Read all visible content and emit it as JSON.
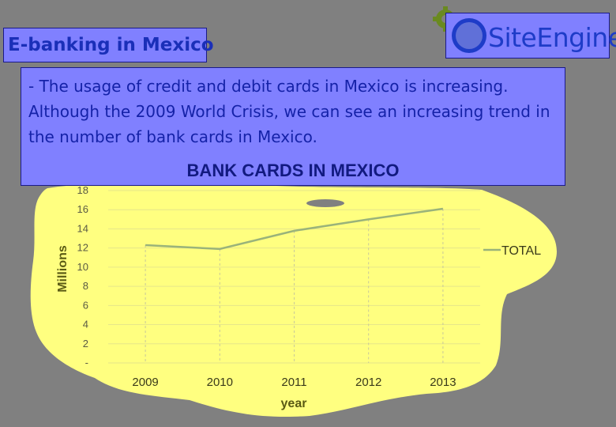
{
  "header": {
    "title": "E-banking in Mexico"
  },
  "logo": {
    "text": "SiteEngine",
    "icon": "gear-icon"
  },
  "description": "- The usage of credit and debit cards in Mexico is increasing. Although the 2009 World Crisis, we can see an increasing trend in the number of bank cards in Mexico.",
  "colors": {
    "panel": "#8080ff",
    "panel_text": "#1522a8",
    "chart_background": "#ffff80",
    "series_line": "#9ab37a",
    "page_background": "#808080"
  },
  "chart_data": {
    "type": "line",
    "title": "BANK CARDS IN MEXICO",
    "xlabel": "year",
    "ylabel": "Millions",
    "categories": [
      "2009",
      "2010",
      "2011",
      "2012",
      "2013"
    ],
    "series": [
      {
        "name": "TOTAL",
        "values": [
          12.3,
          11.9,
          13.8,
          15.0,
          16.1
        ]
      }
    ],
    "ylim": [
      0,
      18
    ],
    "yticks": [
      "-",
      "2",
      "4",
      "6",
      "8",
      "10",
      "12",
      "14",
      "16",
      "18"
    ],
    "grid": true,
    "legend": "right"
  }
}
